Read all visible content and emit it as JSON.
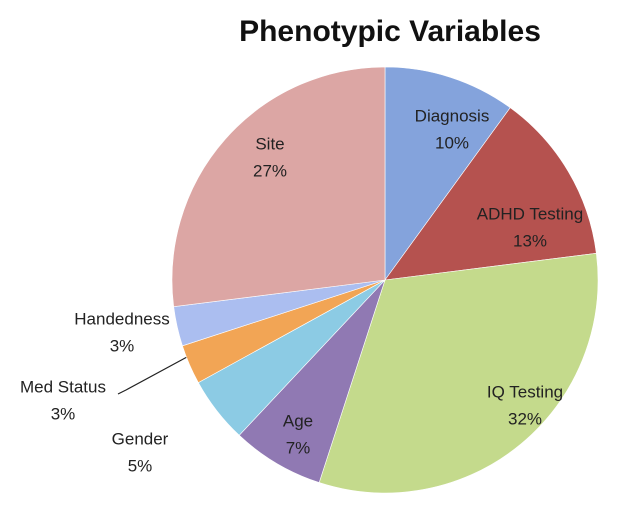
{
  "chart_data": {
    "type": "pie",
    "title": "Phenotypic Variables",
    "categories": [
      "Diagnosis",
      "ADHD Testing",
      "IQ Testing",
      "Age",
      "Gender",
      "Med Status",
      "Handedness",
      "Site"
    ],
    "values": [
      10,
      13,
      32,
      7,
      5,
      3,
      3,
      27
    ],
    "value_labels": [
      "10%",
      "13%",
      "32%",
      "7%",
      "5%",
      "3%",
      "3%",
      "27%"
    ],
    "colors": [
      "#84a3dc",
      "#b5524f",
      "#c4da8c",
      "#9079b3",
      "#8ccbe4",
      "#f2a555",
      "#abbef0",
      "#dca6a4"
    ]
  }
}
